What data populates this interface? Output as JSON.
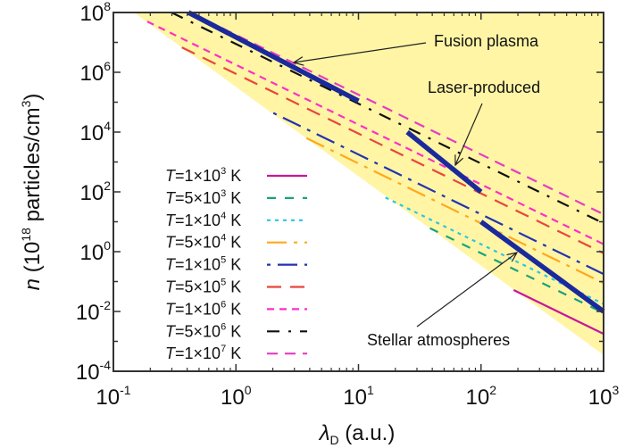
{
  "chart_data": {
    "type": "line",
    "title": "",
    "xlabel": {
      "var": "λ",
      "sub": "D",
      "text": " (a.u.)"
    },
    "ylabel": {
      "var": "n",
      "parts": [
        {
          "t": " (10",
          "sup": false
        },
        {
          "t": "18",
          "sup": true
        },
        {
          "t": " particles/cm",
          "sup": false
        },
        {
          "t": "3",
          "sup": true
        },
        {
          "t": ")",
          "sup": false
        }
      ]
    },
    "xscale": "log",
    "yscale": "log",
    "xlim": [
      0.1,
      1000
    ],
    "ylim": [
      0.0001,
      100000000
    ],
    "x_ticks": [
      {
        "base": "10",
        "exp": "-1"
      },
      {
        "base": "10",
        "exp": "0"
      },
      {
        "base": "10",
        "exp": "1"
      },
      {
        "base": "10",
        "exp": "2"
      },
      {
        "base": "10",
        "exp": "3"
      }
    ],
    "y_ticks": [
      {
        "base": "10",
        "exp": "-4"
      },
      {
        "base": "10",
        "exp": "-2"
      },
      {
        "base": "10",
        "exp": "0"
      },
      {
        "base": "10",
        "exp": "2"
      },
      {
        "base": "10",
        "exp": "4"
      },
      {
        "base": "10",
        "exp": "6"
      },
      {
        "base": "10",
        "exp": "8"
      }
    ],
    "legend_position": "center-left",
    "shaded_region": {
      "color": "#fff5a5",
      "points": [
        [
          0.147,
          100000000
        ],
        [
          1000,
          100000000
        ],
        [
          1000,
          0.00035
        ]
      ]
    },
    "series": [
      {
        "var": "T",
        "mant": "=1×10",
        "exp": "3",
        "unit": " K",
        "T": 1000,
        "color": "#c8169b",
        "dash": "",
        "points": [
          [
            184.5,
            0.0522
          ],
          [
            1000,
            0.00178
          ]
        ]
      },
      {
        "var": "T",
        "mant": "=5×10",
        "exp": "3",
        "unit": " K",
        "T": 5000,
        "color": "#18a27e",
        "dash": "10 10",
        "points": [
          [
            38.3,
            6.06
          ],
          [
            1000,
            0.00889
          ]
        ]
      },
      {
        "var": "T",
        "mant": "=1×10",
        "exp": "4",
        "unit": " K",
        "T": 10000,
        "color": "#2ac6e4",
        "dash": "4 5",
        "points": [
          [
            16.6,
            64.4
          ],
          [
            1000,
            0.0178
          ]
        ]
      },
      {
        "var": "T",
        "mant": "=5×10",
        "exp": "4",
        "unit": " K",
        "T": 50000,
        "color": "#ffa81c",
        "dash": "22 8 4 8",
        "points": [
          [
            3.76,
            6300
          ],
          [
            1000,
            0.0889
          ]
        ]
      },
      {
        "var": "T",
        "mant": "=1×10",
        "exp": "5",
        "unit": " K",
        "T": 100000,
        "color": "#2233b0",
        "dash": "4 8 22 8",
        "points": [
          [
            2.02,
            43600
          ],
          [
            1000,
            0.178
          ]
        ]
      },
      {
        "var": "T",
        "mant": "=5×10",
        "exp": "5",
        "unit": " K",
        "T": 500000,
        "color": "#e8463c",
        "dash": "16 10",
        "points": [
          [
            0.362,
            6780000
          ],
          [
            1000,
            0.889
          ]
        ]
      },
      {
        "var": "T",
        "mant": "=1×10",
        "exp": "6",
        "unit": " K",
        "T": 1000000,
        "color": "#ff2fc4",
        "dash": "8 6",
        "points": [
          [
            0.189,
            49800000
          ],
          [
            1000,
            1.78
          ]
        ]
      },
      {
        "var": "T",
        "mant": "=5×10",
        "exp": "6",
        "unit": " K",
        "T": 5000000,
        "color": "#111111",
        "dash": "14 10 3 10",
        "points": [
          [
            0.298,
            100000000
          ],
          [
            1000,
            8.89
          ]
        ]
      },
      {
        "var": "T",
        "mant": "=1×10",
        "exp": "7",
        "unit": " K",
        "T": 10000000,
        "color": "#e43cc4",
        "dash": "12 8",
        "points": [
          [
            0.422,
            100000000
          ],
          [
            1000,
            17.8
          ]
        ]
      }
    ],
    "regions": [
      {
        "label": "Fusion plasma",
        "color": "#1a2a9c",
        "points": [
          [
            0.41,
            100000000
          ],
          [
            10,
            110000
          ]
        ]
      },
      {
        "label": "Laser-produced",
        "color": "#1a2a9c",
        "points": [
          [
            25,
            10000
          ],
          [
            100,
            100
          ]
        ]
      },
      {
        "label": "Stellar atmospheres",
        "color": "#1a2a9c",
        "points": [
          [
            100,
            10
          ],
          [
            1000,
            0.01
          ]
        ]
      }
    ]
  }
}
